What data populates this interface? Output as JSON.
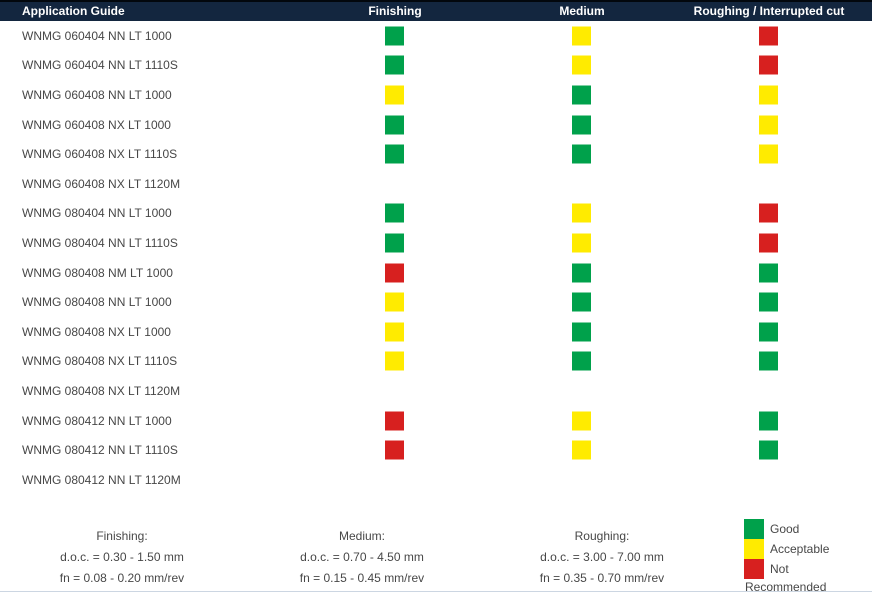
{
  "header": {
    "title": "Application Guide",
    "columns": [
      "Finishing",
      "Medium",
      "Roughing / Interrupted cut"
    ]
  },
  "colors": {
    "header_bg": "#13263F",
    "header_text": "#FFFFFF",
    "body_text": "#474747",
    "good": "#00A14B",
    "acceptable": "#FFEB00",
    "not_recommended": "#D7201F",
    "bottom_line": "#CCD6E2"
  },
  "rows": [
    {
      "label": "WNMG 060404 NN LT 1000",
      "ratings": [
        "good",
        "acceptable",
        "not_recommended"
      ]
    },
    {
      "label": "WNMG 060404 NN LT 1110S",
      "ratings": [
        "good",
        "acceptable",
        "not_recommended"
      ]
    },
    {
      "label": "WNMG 060408 NN LT 1000",
      "ratings": [
        "acceptable",
        "good",
        "acceptable"
      ]
    },
    {
      "label": "WNMG 060408 NX LT 1000",
      "ratings": [
        "good",
        "good",
        "acceptable"
      ]
    },
    {
      "label": "WNMG 060408 NX LT 1110S",
      "ratings": [
        "good",
        "good",
        "acceptable"
      ]
    },
    {
      "label": "WNMG 060408 NX LT 1120M",
      "ratings": [
        null,
        null,
        null
      ]
    },
    {
      "label": "WNMG 080404 NN LT 1000",
      "ratings": [
        "good",
        "acceptable",
        "not_recommended"
      ]
    },
    {
      "label": "WNMG 080404 NN LT 1110S",
      "ratings": [
        "good",
        "acceptable",
        "not_recommended"
      ]
    },
    {
      "label": "WNMG 080408 NM LT 1000",
      "ratings": [
        "not_recommended",
        "good",
        "good"
      ]
    },
    {
      "label": "WNMG 080408 NN LT 1000",
      "ratings": [
        "acceptable",
        "good",
        "good"
      ]
    },
    {
      "label": "WNMG 080408 NX LT 1000",
      "ratings": [
        "acceptable",
        "good",
        "good"
      ]
    },
    {
      "label": "WNMG 080408 NX LT 1110S",
      "ratings": [
        "acceptable",
        "good",
        "good"
      ]
    },
    {
      "label": "WNMG 080408 NX LT 1120M",
      "ratings": [
        null,
        null,
        null
      ]
    },
    {
      "label": "WNMG 080412 NN LT 1000",
      "ratings": [
        "not_recommended",
        "acceptable",
        "good"
      ]
    },
    {
      "label": "WNMG 080412 NN LT 1110S",
      "ratings": [
        "not_recommended",
        "acceptable",
        "good"
      ]
    },
    {
      "label": "WNMG 080412 NN LT 1120M",
      "ratings": [
        null,
        null,
        null
      ]
    }
  ],
  "footer": {
    "columns": [
      {
        "title": "Finishing:",
        "doc": "d.o.c. = 0.30 - 1.50 mm",
        "fn": "fn = 0.08 - 0.20 mm/rev"
      },
      {
        "title": "Medium:",
        "doc": "d.o.c. = 0.70 - 4.50 mm",
        "fn": "fn = 0.15 - 0.45 mm/rev"
      },
      {
        "title": "Roughing:",
        "doc": "d.o.c. = 3.00 - 7.00 mm",
        "fn": "fn = 0.35 - 0.70 mm/rev"
      }
    ]
  },
  "legend": {
    "items": [
      {
        "rating": "good",
        "label": "Good"
      },
      {
        "rating": "acceptable",
        "label": "Acceptable"
      },
      {
        "rating": "not_recommended",
        "label": "Not"
      }
    ],
    "wrap_label": "Recommended"
  }
}
